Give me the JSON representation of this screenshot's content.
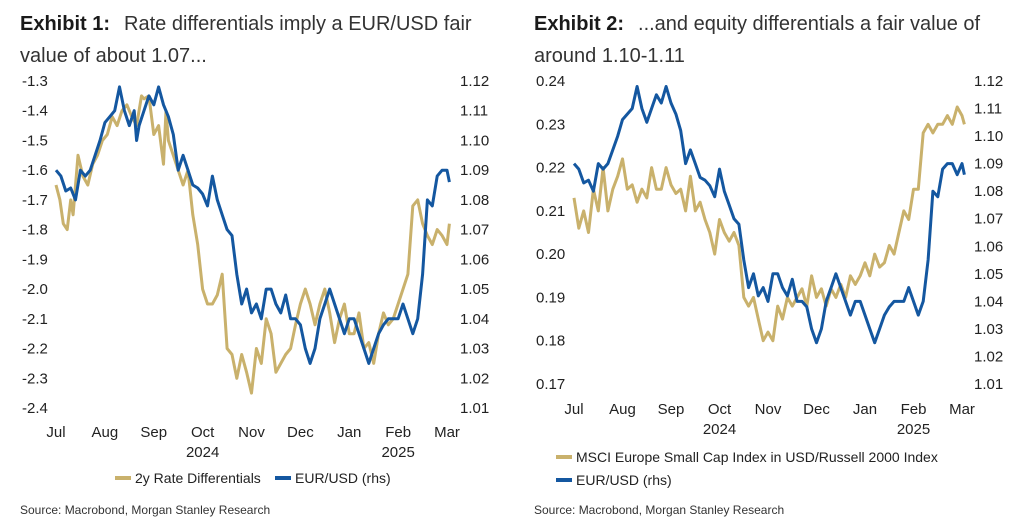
{
  "exhibit1": {
    "label": "Exhibit 1:",
    "title": "Rate differentials imply a EUR/USD fair value of about 1.07...",
    "source": "Source: Macrobond, Morgan Stanley Research"
  },
  "exhibit2": {
    "label": "Exhibit 2:",
    "title": "...and equity differentials a fair value of around 1.10-1.11",
    "source": "Source: Macrobond, Morgan Stanley Research"
  },
  "colors": {
    "gold": "#c9b16c",
    "blue": "#1457a0"
  },
  "chart_data": [
    {
      "type": "line",
      "x_ticks": [
        "Jul",
        "Aug",
        "Sep",
        "Oct",
        "Nov",
        "Dec",
        "Jan",
        "Feb",
        "Mar"
      ],
      "year_labels": [
        {
          "label": "2024",
          "at": "Oct"
        },
        {
          "label": "2025",
          "at": "Feb"
        }
      ],
      "left_axis": {
        "ticks": [
          "-1.3",
          "-1.4",
          "-1.5",
          "-1.6",
          "-1.7",
          "-1.8",
          "-1.9",
          "-2.0",
          "-2.1",
          "-2.2",
          "-2.3",
          "-2.4"
        ],
        "ylim": [
          -2.4,
          -1.3
        ]
      },
      "right_axis": {
        "ticks": [
          "1.12",
          "1.11",
          "1.10",
          "1.09",
          "1.08",
          "1.07",
          "1.06",
          "1.05",
          "1.04",
          "1.03",
          "1.02",
          "1.01"
        ],
        "ylim": [
          1.01,
          1.12
        ]
      },
      "legend_position": "bottom",
      "series": [
        {
          "name": "2y Rate Differentials",
          "axis": "left",
          "color": "#c9b16c",
          "x": [
            0,
            0.08,
            0.15,
            0.23,
            0.3,
            0.35,
            0.45,
            0.55,
            0.65,
            0.75,
            0.85,
            0.95,
            1.05,
            1.15,
            1.25,
            1.35,
            1.45,
            1.55,
            1.65,
            1.75,
            1.8,
            1.9,
            2.0,
            2.1,
            2.2,
            2.25,
            2.3,
            2.4,
            2.5,
            2.6,
            2.7,
            2.8,
            2.9,
            3.0,
            3.1,
            3.2,
            3.3,
            3.4,
            3.5,
            3.6,
            3.7,
            3.8,
            3.9,
            4.0,
            4.1,
            4.2,
            4.3,
            4.4,
            4.5,
            4.6,
            4.7,
            4.8,
            4.9,
            5.0,
            5.1,
            5.2,
            5.3,
            5.4,
            5.5,
            5.6,
            5.7,
            5.8,
            5.9,
            6.0,
            6.1,
            6.2,
            6.3,
            6.4,
            6.5,
            6.6,
            6.7,
            6.8,
            6.9,
            7.0,
            7.1,
            7.2,
            7.3,
            7.4,
            7.5,
            7.6,
            7.7,
            7.8,
            7.9,
            8.0,
            8.05
          ],
          "y": [
            -1.65,
            -1.7,
            -1.78,
            -1.8,
            -1.7,
            -1.75,
            -1.55,
            -1.62,
            -1.65,
            -1.58,
            -1.55,
            -1.5,
            -1.48,
            -1.42,
            -1.45,
            -1.4,
            -1.38,
            -1.42,
            -1.45,
            -1.35,
            -1.36,
            -1.35,
            -1.48,
            -1.45,
            -1.58,
            -1.4,
            -1.5,
            -1.55,
            -1.6,
            -1.65,
            -1.6,
            -1.75,
            -1.85,
            -2.0,
            -2.05,
            -2.05,
            -2.02,
            -1.95,
            -2.2,
            -2.22,
            -2.3,
            -2.22,
            -2.28,
            -2.35,
            -2.2,
            -2.25,
            -2.1,
            -2.15,
            -2.28,
            -2.25,
            -2.22,
            -2.2,
            -2.12,
            -2.05,
            -2.0,
            -2.05,
            -2.12,
            -2.05,
            -2.0,
            -2.08,
            -2.18,
            -2.1,
            -2.05,
            -2.15,
            -2.15,
            -2.08,
            -2.2,
            -2.18,
            -2.25,
            -2.15,
            -2.08,
            -2.12,
            -2.1,
            -2.05,
            -2.0,
            -1.95,
            -1.72,
            -1.7,
            -1.78,
            -1.82,
            -1.85,
            -1.8,
            -1.82,
            -1.85,
            -1.78
          ]
        },
        {
          "name": "EUR/USD (rhs)",
          "axis": "right",
          "color": "#1457a0",
          "x": [
            0,
            0.1,
            0.2,
            0.3,
            0.4,
            0.5,
            0.6,
            0.7,
            0.8,
            0.9,
            1.0,
            1.1,
            1.2,
            1.3,
            1.4,
            1.5,
            1.6,
            1.65,
            1.7,
            1.8,
            1.9,
            2.0,
            2.1,
            2.2,
            2.3,
            2.4,
            2.5,
            2.6,
            2.7,
            2.8,
            2.9,
            3.0,
            3.1,
            3.2,
            3.3,
            3.4,
            3.5,
            3.6,
            3.7,
            3.8,
            3.9,
            4.0,
            4.1,
            4.2,
            4.3,
            4.4,
            4.5,
            4.6,
            4.7,
            4.8,
            4.9,
            5.0,
            5.1,
            5.2,
            5.3,
            5.4,
            5.5,
            5.6,
            5.7,
            5.8,
            5.9,
            6.0,
            6.1,
            6.2,
            6.3,
            6.4,
            6.5,
            6.6,
            6.7,
            6.8,
            6.9,
            7.0,
            7.1,
            7.2,
            7.3,
            7.4,
            7.5,
            7.6,
            7.7,
            7.8,
            7.9,
            8.0,
            8.05
          ],
          "y": [
            1.09,
            1.088,
            1.083,
            1.084,
            1.08,
            1.09,
            1.088,
            1.09,
            1.095,
            1.1,
            1.106,
            1.108,
            1.11,
            1.118,
            1.11,
            1.105,
            1.11,
            1.1,
            1.105,
            1.11,
            1.115,
            1.112,
            1.118,
            1.112,
            1.108,
            1.102,
            1.09,
            1.095,
            1.09,
            1.085,
            1.084,
            1.082,
            1.078,
            1.088,
            1.08,
            1.075,
            1.07,
            1.068,
            1.055,
            1.045,
            1.05,
            1.042,
            1.045,
            1.04,
            1.05,
            1.05,
            1.045,
            1.042,
            1.048,
            1.04,
            1.04,
            1.038,
            1.03,
            1.025,
            1.03,
            1.04,
            1.045,
            1.05,
            1.045,
            1.04,
            1.035,
            1.04,
            1.04,
            1.035,
            1.03,
            1.025,
            1.03,
            1.035,
            1.038,
            1.04,
            1.04,
            1.04,
            1.045,
            1.04,
            1.035,
            1.04,
            1.055,
            1.08,
            1.078,
            1.088,
            1.09,
            1.09,
            1.086
          ]
        }
      ]
    },
    {
      "type": "line",
      "x_ticks": [
        "Jul",
        "Aug",
        "Sep",
        "Oct",
        "Nov",
        "Dec",
        "Jan",
        "Feb",
        "Mar"
      ],
      "year_labels": [
        {
          "label": "2024",
          "at": "Oct"
        },
        {
          "label": "2025",
          "at": "Feb"
        }
      ],
      "left_axis": {
        "ticks": [
          "0.24",
          "0.23",
          "0.22",
          "0.21",
          "0.20",
          "0.19",
          "0.18",
          "0.17"
        ],
        "ylim": [
          0.17,
          0.24
        ]
      },
      "right_axis": {
        "ticks": [
          "1.12",
          "1.11",
          "1.10",
          "1.09",
          "1.08",
          "1.07",
          "1.06",
          "1.05",
          "1.04",
          "1.03",
          "1.02",
          "1.01"
        ],
        "ylim": [
          1.01,
          1.12
        ]
      },
      "legend_position": "bottom",
      "series": [
        {
          "name": "MSCI Europe Small Cap Index in USD/Russell 2000 Index",
          "axis": "left",
          "color": "#c9b16c",
          "x": [
            0,
            0.1,
            0.2,
            0.3,
            0.4,
            0.5,
            0.6,
            0.7,
            0.8,
            0.9,
            1.0,
            1.1,
            1.2,
            1.3,
            1.4,
            1.5,
            1.6,
            1.7,
            1.8,
            1.9,
            2.0,
            2.1,
            2.2,
            2.3,
            2.4,
            2.5,
            2.6,
            2.7,
            2.8,
            2.9,
            3.0,
            3.1,
            3.2,
            3.3,
            3.4,
            3.5,
            3.6,
            3.7,
            3.8,
            3.9,
            4.0,
            4.1,
            4.2,
            4.3,
            4.4,
            4.5,
            4.6,
            4.7,
            4.8,
            4.9,
            5.0,
            5.1,
            5.2,
            5.3,
            5.4,
            5.5,
            5.6,
            5.7,
            5.8,
            5.9,
            6.0,
            6.1,
            6.2,
            6.3,
            6.4,
            6.5,
            6.6,
            6.7,
            6.8,
            6.9,
            7.0,
            7.1,
            7.2,
            7.3,
            7.4,
            7.5,
            7.6,
            7.7,
            7.8,
            7.9,
            8.0,
            8.05
          ],
          "y": [
            0.213,
            0.206,
            0.21,
            0.205,
            0.215,
            0.21,
            0.22,
            0.21,
            0.215,
            0.218,
            0.222,
            0.215,
            0.216,
            0.212,
            0.215,
            0.213,
            0.22,
            0.215,
            0.215,
            0.22,
            0.216,
            0.214,
            0.215,
            0.21,
            0.218,
            0.21,
            0.212,
            0.208,
            0.205,
            0.2,
            0.208,
            0.205,
            0.203,
            0.205,
            0.202,
            0.19,
            0.188,
            0.19,
            0.185,
            0.18,
            0.182,
            0.18,
            0.188,
            0.185,
            0.19,
            0.188,
            0.19,
            0.192,
            0.188,
            0.195,
            0.19,
            0.192,
            0.188,
            0.192,
            0.19,
            0.193,
            0.19,
            0.195,
            0.193,
            0.195,
            0.198,
            0.195,
            0.2,
            0.197,
            0.198,
            0.202,
            0.2,
            0.205,
            0.21,
            0.208,
            0.215,
            0.215,
            0.228,
            0.23,
            0.228,
            0.23,
            0.23,
            0.232,
            0.23,
            0.234,
            0.232,
            0.23
          ]
        },
        {
          "name": "EUR/USD (rhs)",
          "axis": "right",
          "color": "#1457a0",
          "x": [
            0,
            0.1,
            0.2,
            0.3,
            0.4,
            0.5,
            0.6,
            0.7,
            0.8,
            0.9,
            1.0,
            1.1,
            1.2,
            1.3,
            1.4,
            1.5,
            1.6,
            1.7,
            1.8,
            1.9,
            2.0,
            2.1,
            2.2,
            2.3,
            2.4,
            2.5,
            2.6,
            2.7,
            2.8,
            2.9,
            3.0,
            3.1,
            3.2,
            3.3,
            3.4,
            3.5,
            3.6,
            3.7,
            3.8,
            3.9,
            4.0,
            4.1,
            4.2,
            4.3,
            4.4,
            4.5,
            4.6,
            4.7,
            4.8,
            4.9,
            5.0,
            5.1,
            5.2,
            5.3,
            5.4,
            5.5,
            5.6,
            5.7,
            5.8,
            5.9,
            6.0,
            6.1,
            6.2,
            6.3,
            6.4,
            6.5,
            6.6,
            6.7,
            6.8,
            6.9,
            7.0,
            7.1,
            7.2,
            7.3,
            7.4,
            7.5,
            7.6,
            7.7,
            7.8,
            7.9,
            8.0,
            8.05
          ],
          "y": [
            1.09,
            1.088,
            1.083,
            1.084,
            1.08,
            1.09,
            1.088,
            1.09,
            1.095,
            1.1,
            1.106,
            1.108,
            1.11,
            1.118,
            1.11,
            1.105,
            1.11,
            1.115,
            1.112,
            1.118,
            1.112,
            1.108,
            1.102,
            1.09,
            1.095,
            1.09,
            1.085,
            1.084,
            1.082,
            1.078,
            1.088,
            1.08,
            1.075,
            1.07,
            1.068,
            1.055,
            1.045,
            1.05,
            1.042,
            1.045,
            1.04,
            1.05,
            1.05,
            1.045,
            1.042,
            1.048,
            1.04,
            1.04,
            1.038,
            1.03,
            1.025,
            1.03,
            1.04,
            1.045,
            1.05,
            1.045,
            1.04,
            1.035,
            1.04,
            1.04,
            1.035,
            1.03,
            1.025,
            1.03,
            1.035,
            1.038,
            1.04,
            1.04,
            1.04,
            1.045,
            1.04,
            1.035,
            1.04,
            1.055,
            1.08,
            1.078,
            1.088,
            1.09,
            1.09,
            1.086,
            1.09,
            1.086
          ]
        }
      ]
    }
  ]
}
